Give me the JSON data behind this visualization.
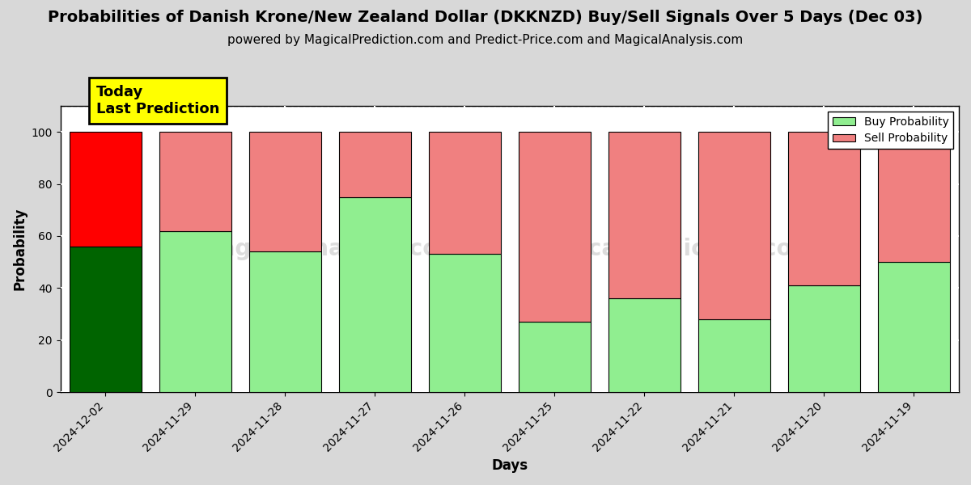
{
  "title": "Probabilities of Danish Krone/New Zealand Dollar (DKKNZD) Buy/Sell Signals Over 5 Days (Dec 03)",
  "subtitle": "powered by MagicalPrediction.com and Predict-Price.com and MagicalAnalysis.com",
  "xlabel": "Days",
  "ylabel": "Probability",
  "categories": [
    "2024-12-02",
    "2024-11-29",
    "2024-11-28",
    "2024-11-27",
    "2024-11-26",
    "2024-11-25",
    "2024-11-22",
    "2024-11-21",
    "2024-11-20",
    "2024-11-19"
  ],
  "buy_values": [
    56,
    62,
    54,
    75,
    53,
    27,
    36,
    28,
    41,
    50
  ],
  "sell_values": [
    44,
    38,
    46,
    25,
    47,
    73,
    64,
    72,
    59,
    50
  ],
  "today_bar_buy_color": "#006400",
  "today_bar_sell_color": "#FF0000",
  "other_bar_buy_color": "#90EE90",
  "other_bar_sell_color": "#F08080",
  "today_label": "Today\nLast Prediction",
  "today_label_bg": "#FFFF00",
  "legend_buy_label": "Buy Probability",
  "legend_sell_label": "Sell Probability",
  "ylim": [
    0,
    110
  ],
  "yticks": [
    0,
    20,
    40,
    60,
    80,
    100
  ],
  "dashed_line_y": 110,
  "grid_color": "#ffffff",
  "plot_bg_color": "#ffffff",
  "fig_bg_color": "#d8d8d8",
  "title_fontsize": 14,
  "subtitle_fontsize": 11,
  "axis_label_fontsize": 12,
  "tick_fontsize": 10
}
